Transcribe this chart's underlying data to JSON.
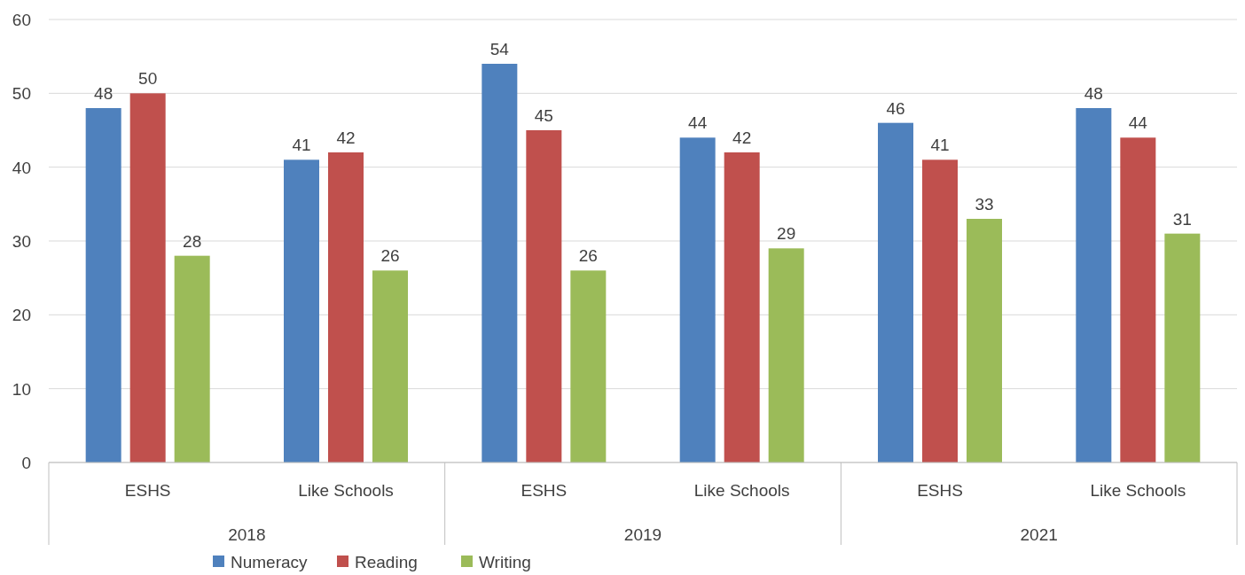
{
  "chart_data": {
    "type": "bar",
    "categories": [
      "ESHS",
      "Like Schools",
      "ESHS",
      "Like Schools",
      "ESHS",
      "Like Schools"
    ],
    "series": [
      {
        "name": "Numeracy",
        "color": "#4f81bd",
        "values": [
          48,
          41,
          54,
          44,
          46,
          48
        ]
      },
      {
        "name": "Reading",
        "color": "#c0504d",
        "values": [
          50,
          42,
          45,
          42,
          41,
          44
        ]
      },
      {
        "name": "Writing",
        "color": "#9bbb59",
        "values": [
          28,
          26,
          26,
          29,
          33,
          31
        ]
      }
    ],
    "annotations": [
      "2018",
      "2019",
      "2021"
    ],
    "ylim": [
      0,
      60
    ],
    "yticks": [
      0,
      10,
      20,
      30,
      40,
      50,
      60
    ],
    "grid": "y",
    "data_labels": true,
    "legend": "bottom"
  }
}
